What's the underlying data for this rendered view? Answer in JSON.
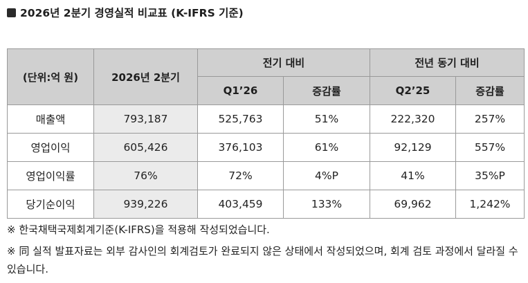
{
  "title": "2026년 2분기 경영실적 비교표 (K-IFRS 기준)",
  "table": {
    "unit_header": "(단위:억 원)",
    "current_header": "2026년 2분기",
    "group_prev_quarter": "전기 대비",
    "group_prev_year": "전년 동기 대비",
    "sub_q1": "Q1’26",
    "sub_change1": "증감률",
    "sub_q2": "Q2’25",
    "sub_change2": "증감률",
    "rows": [
      {
        "label": "매출액",
        "current": "793,187",
        "q1": "525,763",
        "chg1": "51%",
        "q2": "222,320",
        "chg2": "257%"
      },
      {
        "label": "영업이익",
        "current": "605,426",
        "q1": "376,103",
        "chg1": "61%",
        "q2": "92,129",
        "chg2": "557%"
      },
      {
        "label": "영업이익률",
        "current": "76%",
        "q1": "72%",
        "chg1": "4%P",
        "q2": "41%",
        "chg2": "35%P"
      },
      {
        "label": "당기순이익",
        "current": "939,226",
        "q1": "403,459",
        "chg1": "133%",
        "q2": "69,962",
        "chg2": "1,242%"
      }
    ]
  },
  "notes": [
    "※ 한국채택국제회계기준(K-IFRS)을 적용해 작성되었습니다.",
    "※ 同 실적 발표자료는 외부 감사인의 회계검토가 완료되지 않은 상태에서 작성되었으며, 회계 검토 과정에서 달라질 수 있습니다."
  ]
}
